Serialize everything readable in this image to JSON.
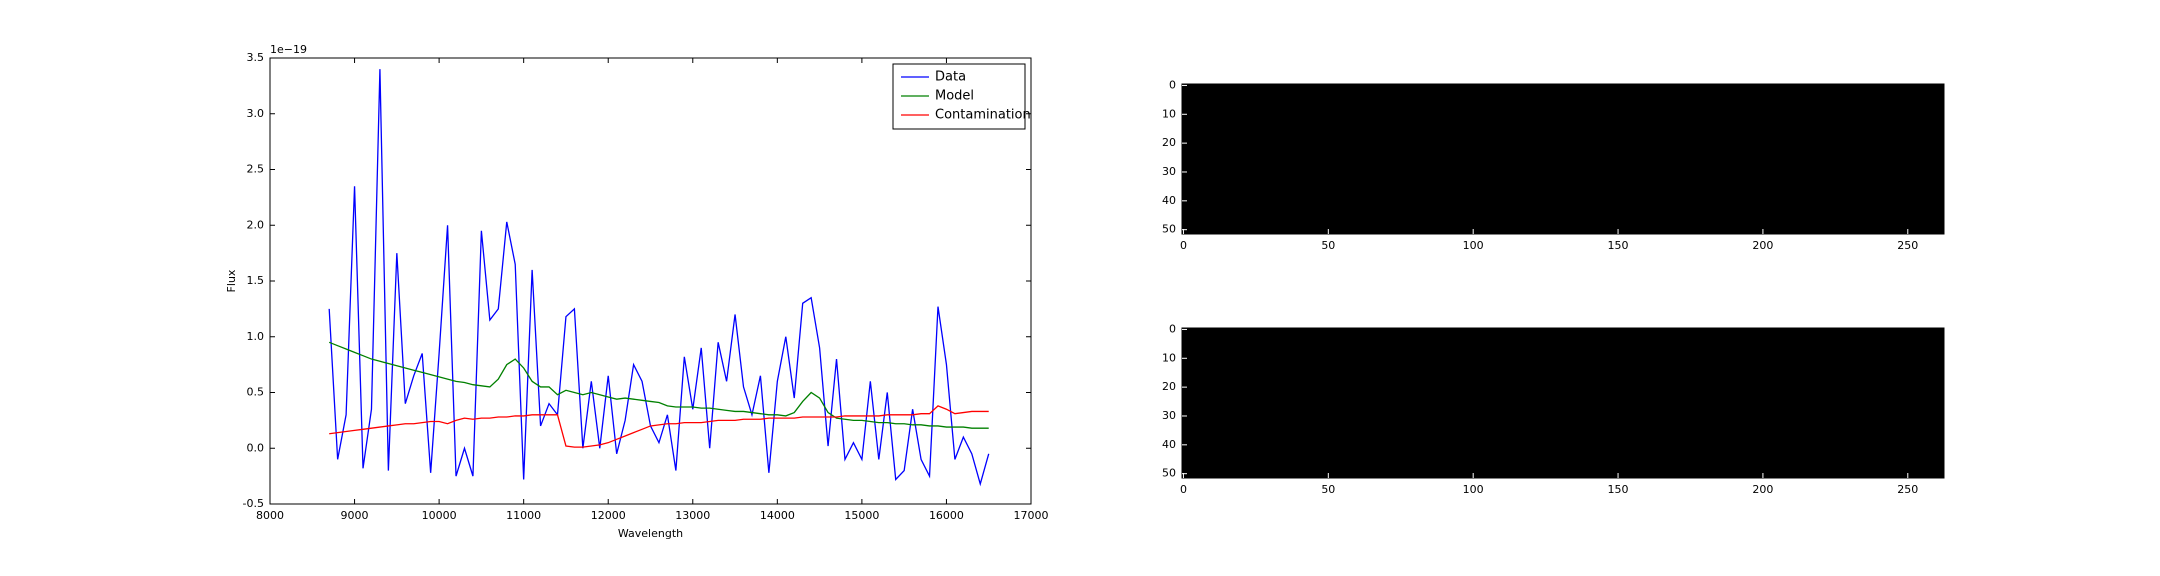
{
  "chart_data": [
    {
      "type": "line",
      "xlabel": "Wavelength",
      "ylabel": "Flux",
      "offset_label": "1e−19",
      "xlim": [
        8000,
        17000
      ],
      "xticks": [
        8000,
        9000,
        10000,
        11000,
        12000,
        13000,
        14000,
        15000,
        16000,
        17000
      ],
      "ylim": [
        -0.5,
        3.5
      ],
      "yticks": [
        -0.5,
        {
          "value": 0,
          "label": "0.0"
        },
        0.5,
        {
          "value": 1,
          "label": "1.0"
        },
        1.5,
        {
          "value": 2,
          "label": "2.0"
        },
        2.5,
        {
          "value": 3,
          "label": "3.0"
        },
        3.5
      ],
      "legend": "upper right",
      "x": [
        8700,
        8800,
        8900,
        9000,
        9100,
        9200,
        9300,
        9400,
        9500,
        9600,
        9700,
        9800,
        9900,
        10000,
        10100,
        10200,
        10300,
        10400,
        10500,
        10600,
        10700,
        10800,
        10900,
        11000,
        11100,
        11200,
        11300,
        11400,
        11500,
        11600,
        11700,
        11800,
        11900,
        12000,
        12100,
        12200,
        12300,
        12400,
        12500,
        12600,
        12700,
        12800,
        12900,
        13000,
        13100,
        13200,
        13300,
        13400,
        13500,
        13600,
        13700,
        13800,
        13900,
        14000,
        14100,
        14200,
        14300,
        14400,
        14500,
        14600,
        14700,
        14800,
        14900,
        15000,
        15100,
        15200,
        15300,
        15400,
        15500,
        15600,
        15700,
        15800,
        15900,
        16000,
        16100,
        16200,
        16300,
        16400,
        16500
      ],
      "series": [
        {
          "name": "Data",
          "color": "#0000ff",
          "values": [
            1.25,
            -0.1,
            0.3,
            2.35,
            -0.18,
            0.35,
            3.4,
            -0.2,
            1.75,
            0.4,
            0.65,
            0.85,
            -0.22,
            0.85,
            2.0,
            -0.25,
            0.0,
            -0.25,
            1.95,
            1.15,
            1.25,
            2.03,
            1.65,
            -0.28,
            1.6,
            0.2,
            0.4,
            0.3,
            1.18,
            1.25,
            0.0,
            0.6,
            0.0,
            0.65,
            -0.05,
            0.25,
            0.75,
            0.6,
            0.2,
            0.05,
            0.3,
            -0.2,
            0.82,
            0.35,
            0.9,
            0.0,
            0.95,
            0.6,
            1.2,
            0.55,
            0.3,
            0.65,
            -0.22,
            0.6,
            1.0,
            0.45,
            1.3,
            1.35,
            0.9,
            0.02,
            0.8,
            -0.1,
            0.05,
            -0.1,
            0.6,
            -0.1,
            0.5,
            -0.28,
            -0.2,
            0.35,
            -0.1,
            -0.25,
            1.27,
            0.75,
            -0.1,
            0.1,
            -0.05,
            -0.32,
            -0.05
          ]
        },
        {
          "name": "Model",
          "color": "#008000",
          "values": [
            0.95,
            0.92,
            0.89,
            0.86,
            0.83,
            0.8,
            0.78,
            0.76,
            0.74,
            0.72,
            0.7,
            0.68,
            0.66,
            0.64,
            0.62,
            0.6,
            0.59,
            0.57,
            0.56,
            0.55,
            0.62,
            0.75,
            0.8,
            0.72,
            0.6,
            0.55,
            0.55,
            0.48,
            0.52,
            0.5,
            0.48,
            0.5,
            0.48,
            0.46,
            0.44,
            0.45,
            0.44,
            0.43,
            0.42,
            0.41,
            0.38,
            0.37,
            0.37,
            0.37,
            0.36,
            0.36,
            0.35,
            0.34,
            0.33,
            0.33,
            0.32,
            0.31,
            0.3,
            0.3,
            0.29,
            0.32,
            0.42,
            0.5,
            0.45,
            0.32,
            0.27,
            0.26,
            0.25,
            0.25,
            0.24,
            0.23,
            0.23,
            0.22,
            0.22,
            0.21,
            0.21,
            0.2,
            0.2,
            0.19,
            0.19,
            0.19,
            0.18,
            0.18,
            0.18
          ]
        },
        {
          "name": "Contamination",
          "color": "#ff0000",
          "values": [
            0.13,
            0.14,
            0.15,
            0.16,
            0.17,
            0.18,
            0.19,
            0.2,
            0.21,
            0.22,
            0.22,
            0.23,
            0.24,
            0.24,
            0.22,
            0.25,
            0.27,
            0.26,
            0.27,
            0.27,
            0.28,
            0.28,
            0.29,
            0.29,
            0.3,
            0.3,
            0.3,
            0.3,
            0.02,
            0.01,
            0.01,
            0.02,
            0.03,
            0.05,
            0.08,
            0.11,
            0.14,
            0.17,
            0.2,
            0.21,
            0.22,
            0.22,
            0.23,
            0.23,
            0.23,
            0.24,
            0.25,
            0.25,
            0.25,
            0.26,
            0.26,
            0.26,
            0.27,
            0.27,
            0.27,
            0.27,
            0.28,
            0.28,
            0.28,
            0.28,
            0.28,
            0.29,
            0.29,
            0.29,
            0.29,
            0.29,
            0.3,
            0.3,
            0.3,
            0.3,
            0.31,
            0.31,
            0.38,
            0.35,
            0.31,
            0.32,
            0.33,
            0.33,
            0.33
          ]
        }
      ]
    },
    {
      "type": "image",
      "color": "#000000",
      "xlim": [
        -0.5,
        262.5
      ],
      "xticks": [
        0,
        50,
        100,
        150,
        200,
        250
      ],
      "ylim": [
        51.5,
        -0.5
      ],
      "yticks": [
        0,
        10,
        20,
        30,
        40,
        50
      ]
    },
    {
      "type": "image",
      "color": "#000000",
      "xlim": [
        -0.5,
        262.5
      ],
      "xticks": [
        0,
        50,
        100,
        150,
        200,
        250
      ],
      "ylim": [
        51.5,
        -0.5
      ],
      "yticks": [
        0,
        10,
        20,
        30,
        40,
        50
      ]
    }
  ]
}
